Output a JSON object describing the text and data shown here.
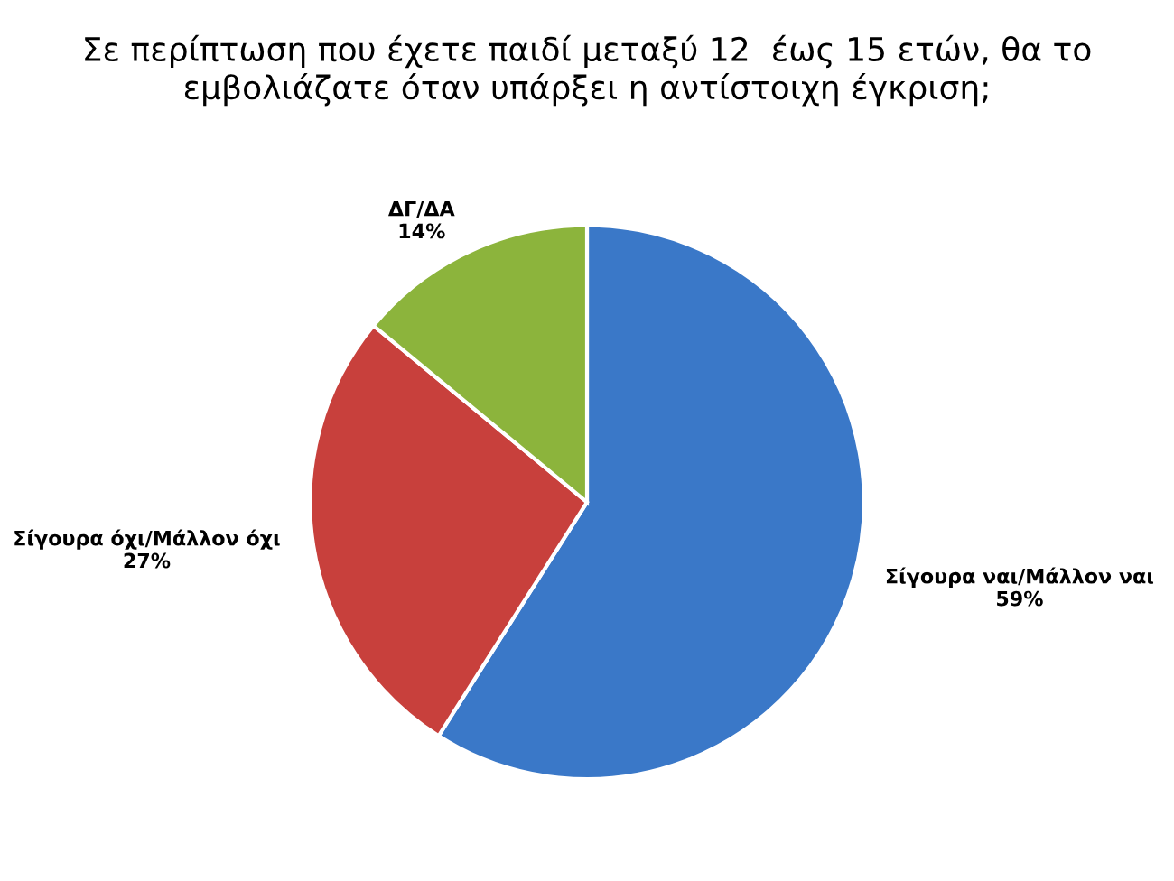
{
  "chart_data": {
    "type": "pie",
    "title": "Σε περίπτωση που έχετε παιδί μεταξύ 12  έως 15 ετών, θα το εμβολιάζατε όταν υπάρξει η αντίστοιχη έγκριση;",
    "categories": [
      "Σίγουρα ναι/Μάλλον ναι",
      "Σίγουρα όχι/Μάλλον όχι",
      "ΔΓ/ΔΑ"
    ],
    "values": [
      59,
      27,
      14
    ],
    "colors": [
      "#3a78c8",
      "#c8403c",
      "#8cb43c"
    ],
    "value_labels": [
      "59%",
      "27%",
      "14%"
    ]
  }
}
